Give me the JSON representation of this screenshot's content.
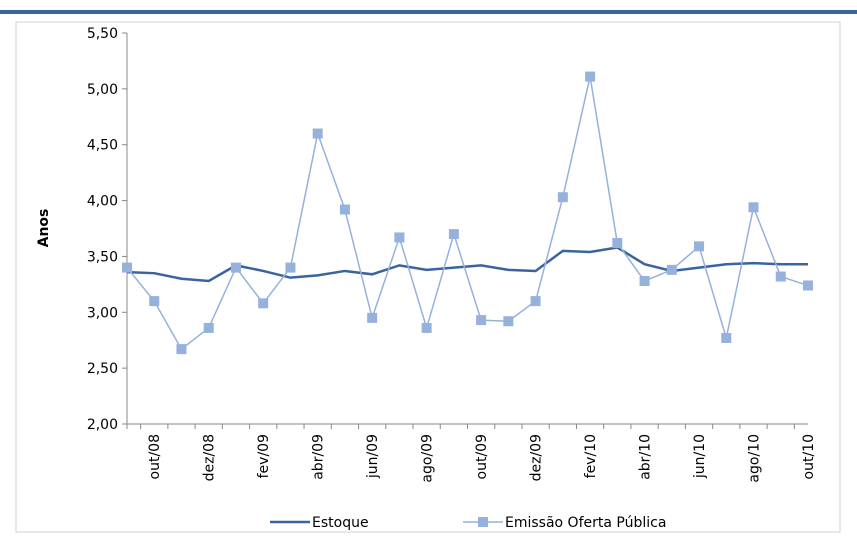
{
  "chart_data": {
    "type": "line",
    "y_label": "Anos",
    "categories": [
      null,
      "out/08",
      null,
      "dez/08",
      null,
      "fev/09",
      null,
      "abr/09",
      null,
      "jun/09",
      null,
      "ago/09",
      null,
      "out/09",
      null,
      "dez/09",
      null,
      "fev/10",
      null,
      "abr/10",
      null,
      "jun/10",
      null,
      "ago/10",
      null,
      "out/10"
    ],
    "series": [
      {
        "name": "Estoque",
        "color": "#3a64a0",
        "marker": false,
        "values": [
          3.36,
          3.35,
          3.3,
          3.28,
          3.42,
          3.37,
          3.31,
          3.33,
          3.37,
          3.34,
          3.42,
          3.38,
          3.4,
          3.42,
          3.38,
          3.37,
          3.55,
          3.54,
          3.58,
          3.43,
          3.37,
          3.4,
          3.43,
          3.44,
          3.43,
          3.43
        ]
      },
      {
        "name": "Emissão Oferta Pública",
        "color": "#95b1dc",
        "marker": true,
        "values": [
          3.4,
          3.1,
          2.67,
          2.86,
          3.4,
          3.08,
          3.4,
          4.6,
          3.92,
          2.95,
          3.67,
          2.86,
          3.7,
          2.93,
          2.92,
          3.1,
          4.03,
          5.11,
          3.62,
          3.28,
          3.38,
          3.59,
          2.77,
          3.94,
          3.32,
          3.24
        ]
      }
    ],
    "ylim": [
      2.0,
      5.5
    ],
    "yticks": [
      {
        "value": 2.0,
        "label": "2,00"
      },
      {
        "value": 2.5,
        "label": "2,50"
      },
      {
        "value": 3.0,
        "label": "3,00"
      },
      {
        "value": 3.5,
        "label": "3,50"
      },
      {
        "value": 4.0,
        "label": "4,00"
      },
      {
        "value": 4.5,
        "label": "4,50"
      },
      {
        "value": 5.0,
        "label": "5,00"
      },
      {
        "value": 5.5,
        "label": "5,50"
      }
    ],
    "legend": "bottom"
  }
}
